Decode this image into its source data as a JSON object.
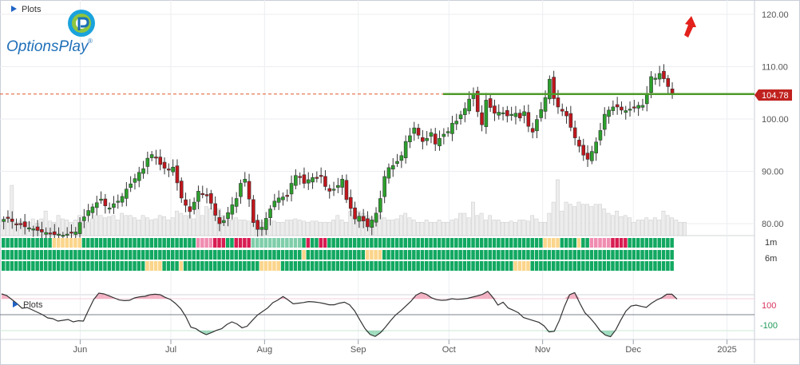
{
  "chart_data": {
    "type": "candlestick",
    "title": "",
    "panels": {
      "price": {
        "label": "Plots",
        "ylim": [
          76,
          124
        ],
        "ticks": [
          80,
          90,
          100,
          110,
          120
        ],
        "current_price": 104.78,
        "resistance": 104.78
      },
      "oscillator": {
        "label": "Plots",
        "levels": [
          100,
          -100
        ],
        "ylim": [
          -150,
          200
        ]
      }
    },
    "x_ticks": [
      {
        "label": "Jun",
        "date": "2024-06-01"
      },
      {
        "label": "Jul",
        "date": "2024-07-01"
      },
      {
        "label": "Aug",
        "date": "2024-08-01"
      },
      {
        "label": "Sep",
        "date": "2024-09-01"
      },
      {
        "label": "Oct",
        "date": "2024-10-01"
      },
      {
        "label": "Nov",
        "date": "2024-11-01"
      },
      {
        "label": "Dec",
        "date": "2024-12-01"
      },
      {
        "label": "2025",
        "date": "2025-01-01"
      }
    ],
    "price_closes": [
      80.8,
      81,
      80.4,
      79.8,
      80,
      79.4,
      79.2,
      79,
      78.7,
      78.4,
      78.3,
      78,
      77.9,
      78,
      77.8,
      78,
      78.2,
      78.4,
      80.2,
      81.3,
      82.5,
      83.2,
      84,
      84.7,
      83.4,
      83,
      83.8,
      84.3,
      85.2,
      86.6,
      87.6,
      88.6,
      89.8,
      90.5,
      92.5,
      93.2,
      92.7,
      91.3,
      90.6,
      90.3,
      90.8,
      87.8,
      84.9,
      83.5,
      82.3,
      84.1,
      86.2,
      85.6,
      85.3,
      83.9,
      81.6,
      80,
      80.6,
      82.1,
      83.6,
      84.8,
      87.7,
      88.5,
      84.7,
      80.2,
      78.9,
      79.3,
      81,
      82.8,
      84.3,
      84.9,
      85.1,
      85.4,
      87.7,
      89.2,
      88.9,
      87.7,
      88.4,
      88.8,
      88.8,
      89.2,
      87.1,
      86.2,
      86.6,
      87.3,
      88.5,
      84.6,
      82.9,
      80.9,
      81.4,
      80.5,
      79.4,
      80.7,
      82,
      84.8,
      89,
      90.7,
      91.1,
      91.9,
      93,
      95.7,
      96.8,
      98.3,
      96.9,
      95.7,
      96.3,
      97.4,
      95.2,
      96.3,
      97.1,
      97.6,
      99.2,
      99.6,
      100.8,
      102,
      103.8,
      104.9,
      101.4,
      98.9,
      103.6,
      102.2,
      101.1,
      101.3,
      101.2,
      100.6,
      100.9,
      101.1,
      100.2,
      101.4,
      98.6,
      97.5,
      99.9,
      101.8,
      104.1,
      107.6,
      103.9,
      102.3,
      101.5,
      100.6,
      98.4,
      96.4,
      94.8,
      93.1,
      92.3,
      93.8,
      95.6,
      97.8,
      100.9,
      101.7,
      102.3,
      102.3,
      101.7,
      101.6,
      101.9,
      102.3,
      102.6,
      102.6,
      104.8,
      108.1,
      107.8,
      108.7,
      107.7,
      106.2,
      104.78
    ],
    "volumes": [
      0.15,
      0.16,
      0.45,
      0.12,
      0.13,
      0.12,
      0.12,
      0.15,
      0.11,
      0.15,
      0.22,
      0.13,
      0.12,
      0.18,
      0.15,
      0.14,
      0.12,
      0.14,
      0.18,
      0.14,
      0.12,
      0.15,
      0.18,
      0.18,
      0.16,
      0.17,
      0.18,
      0.14,
      0.2,
      0.18,
      0.18,
      0.16,
      0.14,
      0.18,
      0.16,
      0.14,
      0.15,
      0.18,
      0.17,
      0.14,
      0.16,
      0.22,
      0.2,
      0.18,
      0.18,
      0.15,
      0.32,
      0.18,
      0.26,
      0.24,
      0.22,
      0.24,
      0.18,
      0.15,
      0.14,
      0.16,
      0.14,
      0.14,
      0.13,
      0.16,
      0.13,
      0.12,
      0.12,
      0.14,
      0.13,
      0.12,
      0.12,
      0.14,
      0.14,
      0.15,
      0.14,
      0.13,
      0.12,
      0.13,
      0.13,
      0.12,
      0.12,
      0.12,
      0.14,
      0.18,
      0.14,
      0.12,
      0.22,
      0.18,
      0.22,
      0.2,
      0.18,
      0.16,
      0.14,
      0.18,
      0.16,
      0.14,
      0.14,
      0.15,
      0.18,
      0.2,
      0.16,
      0.14,
      0.12,
      0.12,
      0.14,
      0.12,
      0.12,
      0.14,
      0.12,
      0.12,
      0.14,
      0.15,
      0.2,
      0.2,
      0.16,
      0.3,
      0.18,
      0.2,
      0.14,
      0.18,
      0.14,
      0.14,
      0.12,
      0.12,
      0.13,
      0.12,
      0.14,
      0.14,
      0.13,
      0.18,
      0.15,
      0.12,
      0.12,
      0.2,
      0.3,
      0.5,
      0.22,
      0.3,
      0.28,
      0.26,
      0.3,
      0.28,
      0.28,
      0.26,
      0.28,
      0.28,
      0.24,
      0.2,
      0.18,
      0.22,
      0.17,
      0.18,
      0.16,
      0.12,
      0.14,
      0.14,
      0.16,
      0.14,
      0.16,
      0.14,
      0.22,
      0.18,
      0.16,
      0.14,
      0.12,
      0.12
    ],
    "signal_rows": [
      {
        "label": "",
        "states": "GGGGGGGGGGGGGGGGGYYYYYYYYYYYGGGGGGGGGGGGGGGGGGGGGGGGGGGGGGGGGGGGGGGGGPPPPPRRRRRRGGRRRRRRLLLLLLLLLLLLLLLLLLLGRRGGRRRRGGGGGGGGGGGGGGGGGGGGGGGGGGGGGGGGGGGGGGGGGGGGGGGGGGGGGGGGGGGGGGGGGGGGGGGGGGGGYYYYYYGGGGGGYYGGGPPPPPPPRRRRRRGGGGGGGGGGGGGGGGGG"
      },
      {
        "label": "1m",
        "states": "GGGGGGGGGGGGGGGGGGGGGGGGGGGGGGGGGGGGGGGGGGGGGGGGGGGGGGGGGGGGGGGGGGGGGGGGGGGGGGGGGGGGGGGGGGGGGGGGGGGGGGGGGGGYYGGGGGGGGGGGGYGGGGGGGGYYYYYYYGGGGGGGGGGGGGGGGGGGGGGGGGGGGGGGGGGGGGGGGGGGGGGGGGGGGGGGGGGGGGGGGGGGGGGGGGGGGGGGGGGGGGGGGGGGGGGGGGGGGGGGGGG"
      },
      {
        "label": "6m",
        "states": "GGGGGGGGGGGGGGGGGGGGGGGGGGGGGGGGGGGGGGGGGGGGGGGGGGGGGGGGGGGGGGGGGGGGYYYYYYYYGGGGGGGGYYGGGGGGGGGGGGGGGGGGGGGGGGGGGGGGGGGGGYYYYYYYYYYGGGGGGGGGGGGGGGGGGGGGGGGGGGGGGGGGGGGGGGGGGGGGGGGGGGGGGGGGGGGGGGGGGGGGGGGGGGGGGGGGGGGGGGGGGGGGGGGGGGGGGGGGGGGGGYYYYYYYYGGGGGGGGGGGGGGGGGGGGGGGGGGGGGGGGGGGGGGGGGGGGGGGGGGGGGGGGGGGGGGGGGGGGG"
      }
    ],
    "oscillator_values": [
      130,
      120,
      95,
      70,
      40,
      45,
      30,
      15,
      0,
      -20,
      -25,
      -40,
      -35,
      -30,
      -45,
      -38,
      -40,
      30,
      95,
      135,
      130,
      118,
      105,
      92,
      88,
      90,
      105,
      112,
      115,
      125,
      128,
      125,
      108,
      95,
      70,
      38,
      -12,
      -78,
      -88,
      -110,
      -125,
      -112,
      -98,
      -88,
      -62,
      -45,
      -58,
      -82,
      -72,
      -36,
      -2,
      20,
      42,
      75,
      92,
      114,
      92,
      68,
      72,
      76,
      82,
      80,
      76,
      70,
      62,
      62,
      72,
      78,
      62,
      24,
      -32,
      -86,
      -124,
      -136,
      -114,
      -78,
      -38,
      -2,
      24,
      54,
      84,
      122,
      138,
      128,
      106,
      94,
      90,
      92,
      100,
      96,
      98,
      102,
      110,
      118,
      128,
      146,
      108,
      60,
      78,
      42,
      28,
      12,
      -18,
      -28,
      -38,
      -48,
      -70,
      -108,
      -104,
      -36,
      52,
      125,
      138,
      72,
      12,
      -20,
      -58,
      -102,
      -128,
      -138,
      -96,
      -34,
      22,
      54,
      60,
      52,
      46,
      72,
      92,
      106,
      128,
      128,
      98
    ],
    "colors": {
      "bull": "#2ca02c",
      "bear": "#c0161c",
      "volume": "#ededed",
      "resistance": "#4e9a2a",
      "price_label_bg": "#c0221f",
      "osc_over": "#f2a6bb",
      "osc_under": "#8fd6b4",
      "signal_green": "#12a861",
      "signal_yellow": "#fbd58b",
      "signal_pink": "#f08cb0",
      "signal_red": "#d81c52",
      "signal_light": "#7fceaa",
      "arrow": "#e3201b"
    }
  },
  "ui": {
    "top_plots_label": "Plots",
    "bottom_plots_label": "Plots",
    "logo_text": "OptionsPlay",
    "logo_mark": "®",
    "price_tag": "104.78",
    "row_label_1m": "1m",
    "row_label_6m": "6m",
    "osc_label_100": "100",
    "osc_label_minus100": "-100",
    "direction_icon": "up-arrow-icon",
    "collapse_icon": "triangle-right-icon"
  }
}
